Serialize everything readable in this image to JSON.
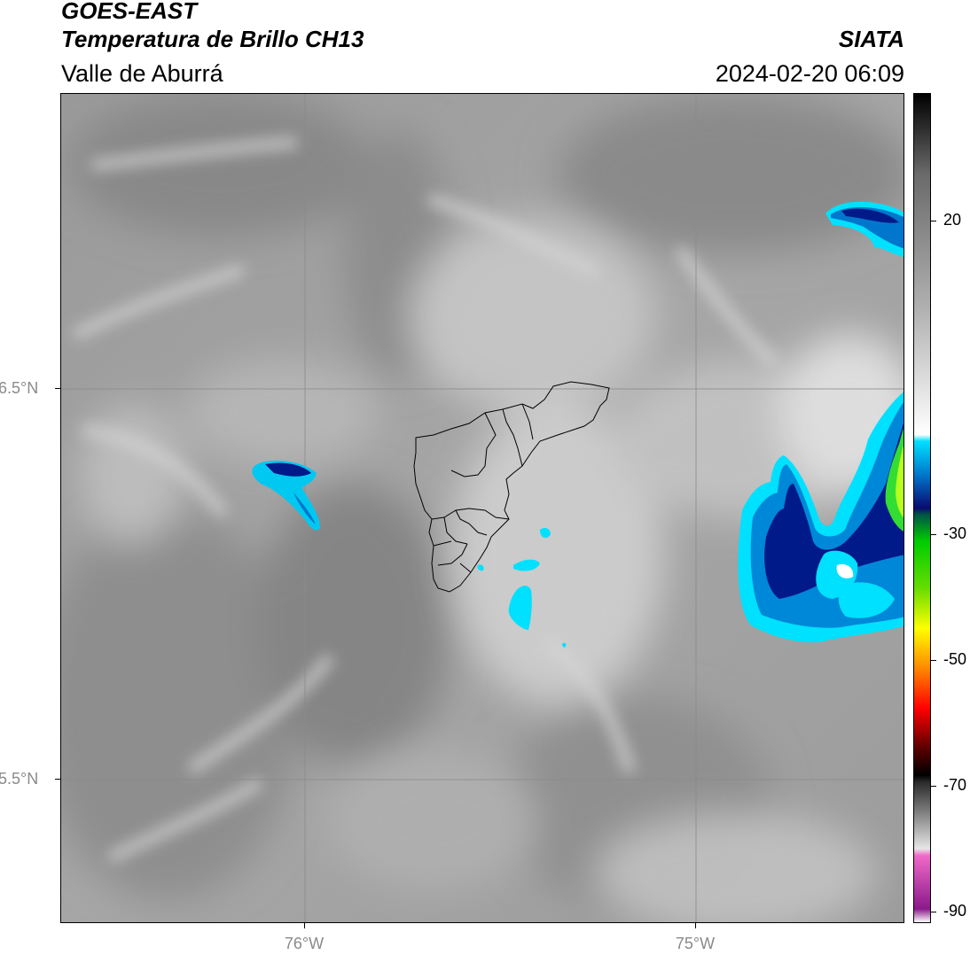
{
  "header": {
    "title_line1": "GOES-EAST",
    "title_line2": "Temperatura de Brillo CH13",
    "subtitle": "Valle de Aburrá",
    "organization": "SIATA",
    "timestamp": "2024-02-20 06:09"
  },
  "axes": {
    "lat_labels": [
      "6.5°N",
      "5.5°N"
    ],
    "lon_labels": [
      "76°W",
      "75°W"
    ]
  },
  "colorbar": {
    "tick_labels": [
      "20",
      "-30",
      "-50",
      "-70",
      "-90"
    ],
    "tick_values": [
      20,
      -30,
      -50,
      -70,
      -90
    ],
    "range": [
      -92,
      32
    ],
    "stops": [
      {
        "value": -92,
        "color": "#ffffff"
      },
      {
        "value": -90,
        "color": "#8a1a8a"
      },
      {
        "value": -82,
        "color": "#f06ac8"
      },
      {
        "value": -81,
        "color": "#e6e6e6"
      },
      {
        "value": -71,
        "color": "#2a2a2a"
      },
      {
        "value": -70,
        "color": "#000000"
      },
      {
        "value": -66,
        "color": "#5a0000"
      },
      {
        "value": -60,
        "color": "#ff0000"
      },
      {
        "value": -54,
        "color": "#ff8800"
      },
      {
        "value": -48,
        "color": "#ffff00"
      },
      {
        "value": -42,
        "color": "#66dd00"
      },
      {
        "value": -35,
        "color": "#00cc00"
      },
      {
        "value": -31,
        "color": "#005544"
      },
      {
        "value": -30,
        "color": "#0a0a70"
      },
      {
        "value": -25,
        "color": "#0077cc"
      },
      {
        "value": -20,
        "color": "#00e0ff"
      },
      {
        "value": -19,
        "color": "#ffffff"
      },
      {
        "value": 0,
        "color": "#b0b0b0"
      },
      {
        "value": 20,
        "color": "#6a6a6a"
      },
      {
        "value": 32,
        "color": "#000000"
      }
    ]
  },
  "colors": {
    "cloud_cyan": "#00e0ff",
    "cloud_blue": "#0088d8",
    "cloud_navy": "#001a8a",
    "cloud_green": "#33dd33",
    "land_gray": "#a9a9a9"
  }
}
